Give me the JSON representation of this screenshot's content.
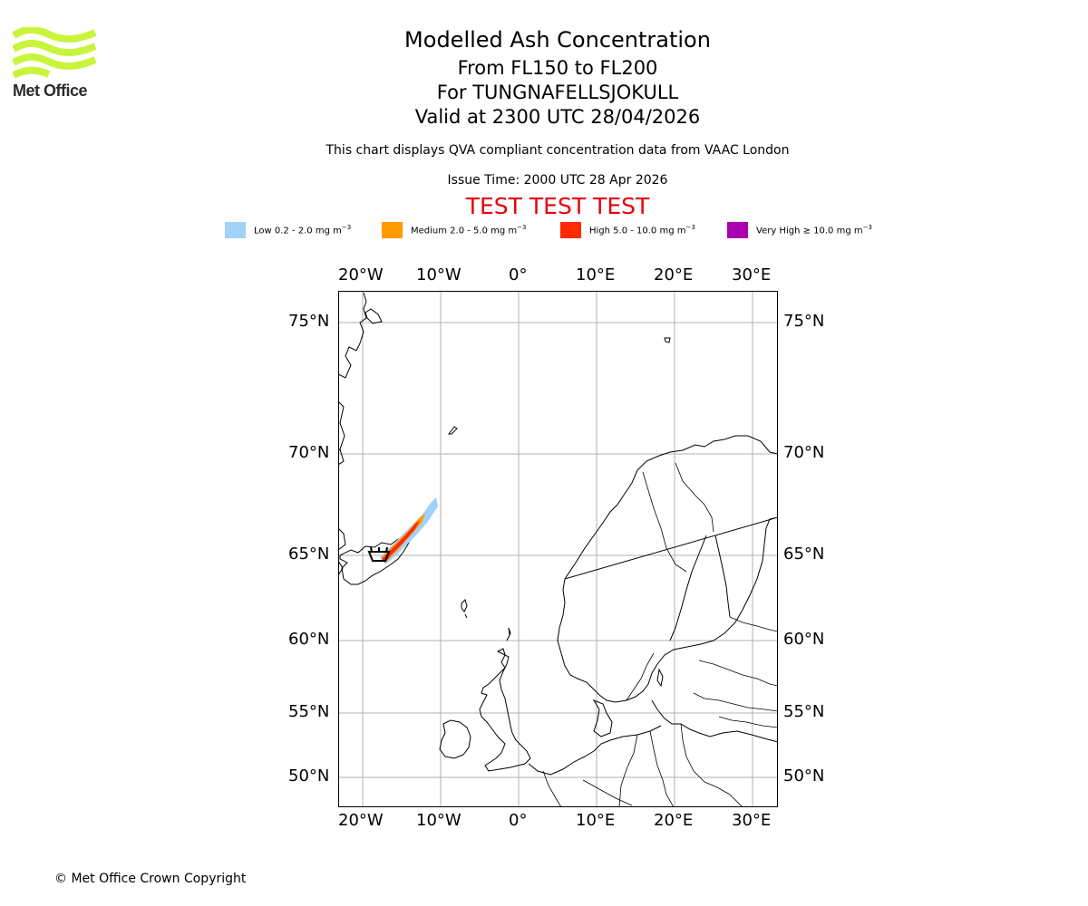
{
  "logo": {
    "text": "Met Office",
    "wave_color": "#c8f53c"
  },
  "header": {
    "title": "Modelled Ash Concentration",
    "levels": "From FL150 to FL200",
    "volcano": "For TUNGNAFELLSJOKULL",
    "valid": "Valid at 2300 UTC 28/04/2026",
    "note": "This chart displays QVA compliant concentration data from VAAC London",
    "issue_time": "Issue Time: 2000 UTC 28 Apr 2026",
    "test_banner": "TEST TEST TEST",
    "test_banner_color": "#e8000b"
  },
  "legend": [
    {
      "label": "Low 0.2 - 2.0 mg m",
      "sup": "−3",
      "color": "#a0d2fa"
    },
    {
      "label": "Medium 2.0 - 5.0 mg m",
      "sup": "−3",
      "color": "#ff9a00"
    },
    {
      "label": "High 5.0 - 10.0 mg m",
      "sup": "−3",
      "color": "#ff2a00"
    },
    {
      "label": "Very High ≥ 10.0 mg m",
      "sup": "−3",
      "color": "#ab00b0"
    }
  ],
  "map": {
    "lon_ticks": [
      "20°W",
      "10°W",
      "0°",
      "10°E",
      "20°E",
      "30°E"
    ],
    "lat_ticks": [
      "75°N",
      "70°N",
      "65°N",
      "60°N",
      "55°N",
      "50°N"
    ],
    "lon_values": [
      -20,
      -10,
      0,
      10,
      20,
      30
    ],
    "lat_values": [
      75,
      70,
      65,
      60,
      55,
      50
    ],
    "grid_color": "#b0b0b0",
    "volcano_marker": "volcano-icon"
  },
  "footer": {
    "copyright": "© Met Office Crown Copyright"
  }
}
